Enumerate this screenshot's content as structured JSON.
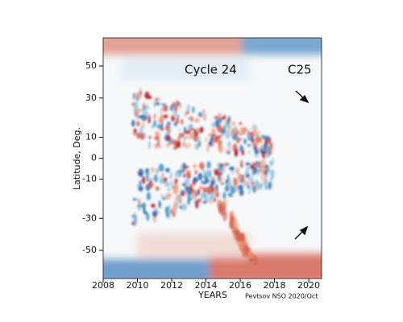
{
  "chart_data": {
    "type": "heatmap",
    "ylabel": "Latitude, Deg.",
    "xlabel": "YEARS",
    "credit": "Pevtsov  NSO  2020/Oct",
    "annotations": [
      "Cycle 24",
      "C25"
    ],
    "xlim": [
      2008,
      2020.75
    ],
    "xticks": [
      2008,
      2010,
      2012,
      2014,
      2016,
      2018,
      2020
    ],
    "ylim": [
      -90,
      90
    ],
    "yscale": "sine",
    "yticks": [
      -50,
      -30,
      -10,
      0,
      10,
      30,
      50
    ]
  }
}
